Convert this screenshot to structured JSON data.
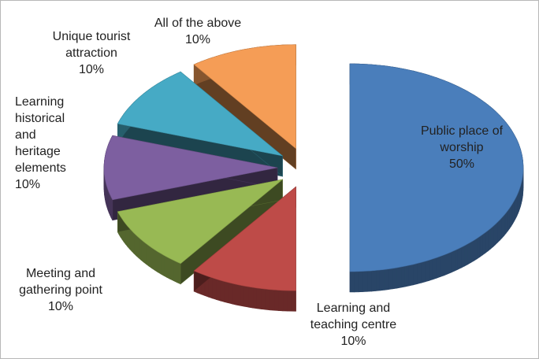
{
  "chart_data": {
    "type": "pie",
    "categories": [
      "Public place of worship",
      "Learning and teaching centre",
      "Meeting and gathering point",
      "Learning historical and heritage elements",
      "Unique tourist attraction",
      "All of the above"
    ],
    "values": [
      50,
      10,
      10,
      10,
      10,
      10
    ],
    "value_labels": [
      "50%",
      "10%",
      "10%",
      "10%",
      "10%",
      "10%"
    ],
    "colors": [
      "#4a7ebb",
      "#be4b48",
      "#98b954",
      "#7d5fa0",
      "#46aac5",
      "#f59d56"
    ]
  }
}
